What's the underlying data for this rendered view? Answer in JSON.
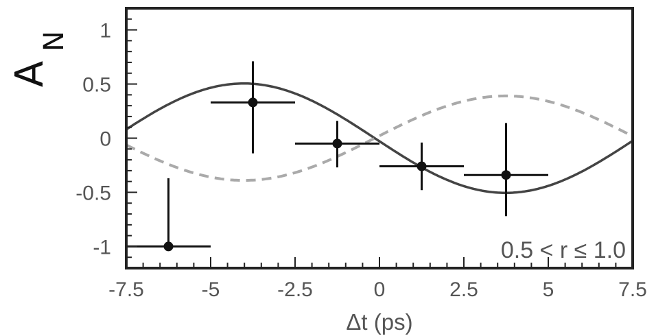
{
  "chart_data": {
    "type": "scatter",
    "title": "",
    "xlabel": "Δt (ps)",
    "ylabel": "A",
    "ylabel_subscript": "N",
    "xlim": [
      -7.5,
      7.5
    ],
    "ylim": [
      -1.2,
      1.2
    ],
    "x_ticks": [
      {
        "value": -7.5,
        "label": "-7.5"
      },
      {
        "value": -5,
        "label": "-5"
      },
      {
        "value": -2.5,
        "label": "-2.5"
      },
      {
        "value": 0,
        "label": "0"
      },
      {
        "value": 2.5,
        "label": "2.5"
      },
      {
        "value": 5,
        "label": "5"
      },
      {
        "value": 7.5,
        "label": "7.5"
      }
    ],
    "y_ticks": [
      {
        "value": 1,
        "label": "1"
      },
      {
        "value": 0.5,
        "label": "0.5"
      },
      {
        "value": 0,
        "label": "0"
      },
      {
        "value": -0.5,
        "label": "-0.5"
      },
      {
        "value": -1,
        "label": "-1"
      }
    ],
    "grid": false,
    "annotation": "0.5 < r ≤ 1.0",
    "series": [
      {
        "kind": "points_with_errors",
        "color": "#111111",
        "points": [
          {
            "x": -6.25,
            "y": -1.0,
            "xerr": 1.25,
            "yerr_low": 0.0,
            "yerr_high": 0.63
          },
          {
            "x": -3.75,
            "y": 0.33,
            "xerr": 1.25,
            "yerr_low": 0.47,
            "yerr_high": 0.38
          },
          {
            "x": -1.25,
            "y": -0.05,
            "xerr": 1.25,
            "yerr_low": 0.22,
            "yerr_high": 0.21
          },
          {
            "x": 1.25,
            "y": -0.26,
            "xerr": 1.25,
            "yerr_low": 0.22,
            "yerr_high": 0.22
          },
          {
            "x": 3.75,
            "y": -0.34,
            "xerr": 1.25,
            "yerr_low": 0.38,
            "yerr_high": 0.48
          }
        ]
      },
      {
        "kind": "curve",
        "style": "solid",
        "color": "#444444",
        "amplitude": 0.505,
        "omega": 0.405,
        "phase": -0.14
      },
      {
        "kind": "curve",
        "style": "dashed",
        "color": "#aaaaaa",
        "amplitude": -0.39,
        "omega": 0.405,
        "phase": -0.14
      }
    ]
  }
}
